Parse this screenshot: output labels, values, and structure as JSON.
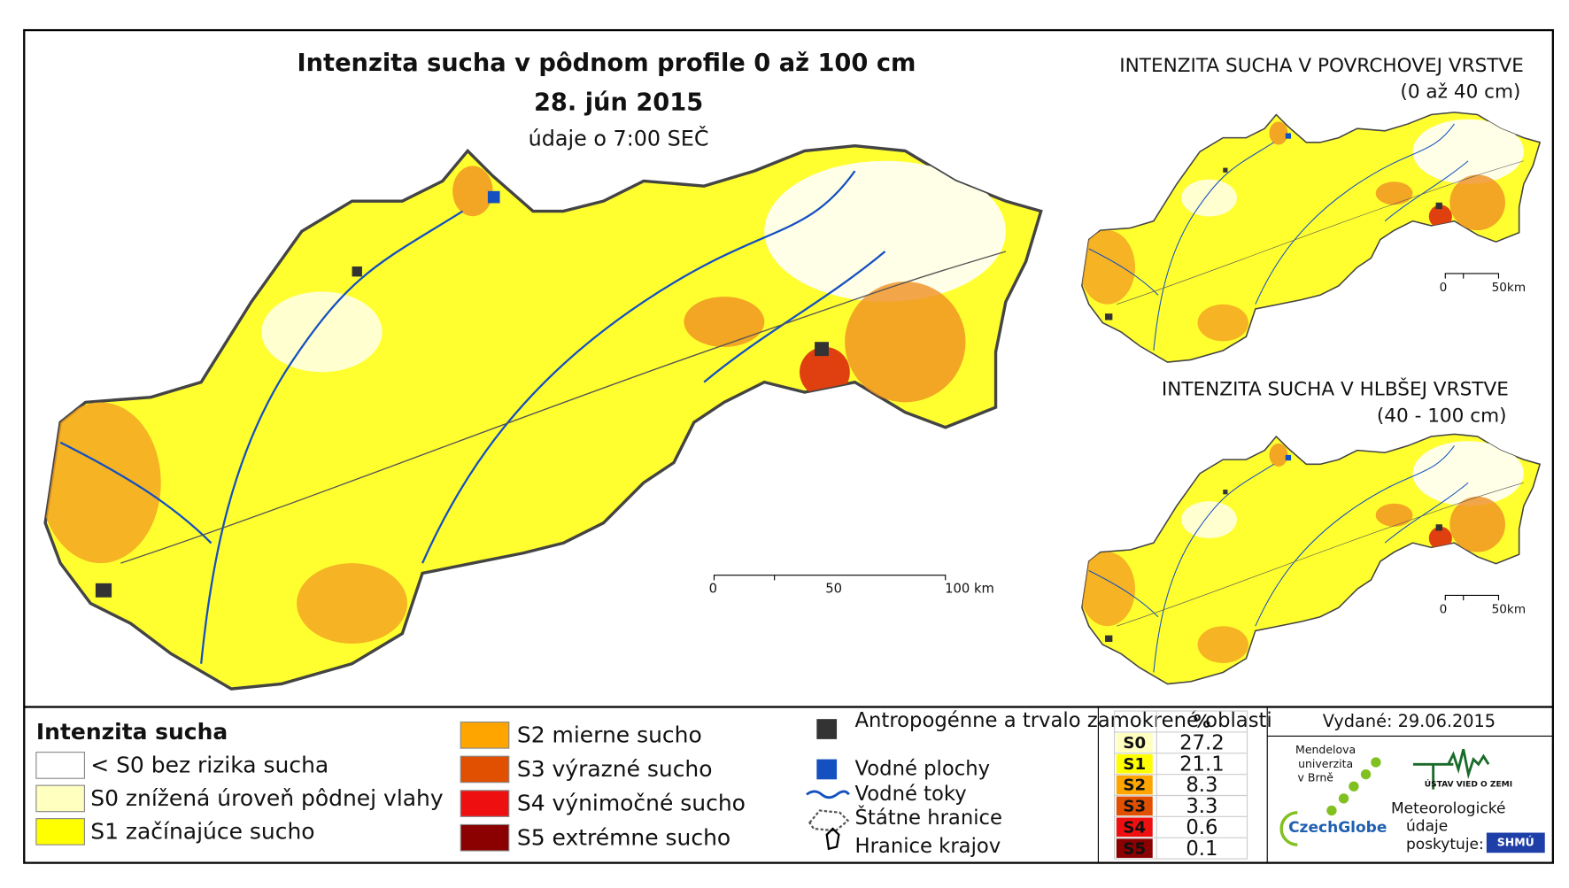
{
  "main_map": {
    "title": "Intenzita sucha v pôdnom profile 0 až 100 cm",
    "date": "28. jún 2015",
    "subtitle": "údaje o 7:00 SEČ",
    "scale": [
      "0",
      "50",
      "100 km"
    ]
  },
  "inset_top": {
    "title": "INTENZITA SUCHA V POVRCHOVEJ VRSTVE",
    "subtitle": "(0 až 40 cm)",
    "scale": [
      "0",
      "50km"
    ]
  },
  "inset_bottom": {
    "title": "INTENZITA SUCHA V HLBŠEJ VRSTVE",
    "subtitle": "(40 - 100 cm)",
    "scale": [
      "0",
      "50km"
    ]
  },
  "legend": {
    "title": "Intenzita sucha",
    "items": [
      {
        "label": "< S0 bez rizika sucha",
        "color": "#ffffff"
      },
      {
        "label": "S0 znížená úroveň pôdnej vlahy",
        "color": "#ffffc0"
      },
      {
        "label": "S1 začínajúce sucho",
        "color": "#ffff00"
      },
      {
        "label": "S2 mierne sucho",
        "color": "#ffa500"
      },
      {
        "label": "S3 výrazné sucho",
        "color": "#e05000"
      },
      {
        "label": "S4 výnimočné sucho",
        "color": "#ee1010"
      },
      {
        "label": "S5 extrémne sucho",
        "color": "#8b0000"
      }
    ]
  },
  "symbols": [
    "Antropogénne a trvalo zamokrené oblasti",
    "Vodné plochy",
    "Vodné toky",
    "Štátne hranice",
    "Hranice krajov"
  ],
  "stats": {
    "header": "%",
    "rows": [
      [
        "S0",
        "27.2"
      ],
      [
        "S1",
        "21.1"
      ],
      [
        "S2",
        "8.3"
      ],
      [
        "S3",
        "3.3"
      ],
      [
        "S4",
        "0.6"
      ],
      [
        "S5",
        "0.1"
      ]
    ]
  },
  "footer": {
    "issued": "Vydané: 29.06.2015",
    "mendel": [
      "Mendelova",
      "univerzita",
      "v Brně"
    ],
    "czechglobe": "CzechGlobe",
    "ustav": "ÚSTAV VIED O ZEMI",
    "meteo": [
      "Meteorologické",
      "údaje",
      "poskytuje:"
    ],
    "shmu": "SHMÚ"
  }
}
